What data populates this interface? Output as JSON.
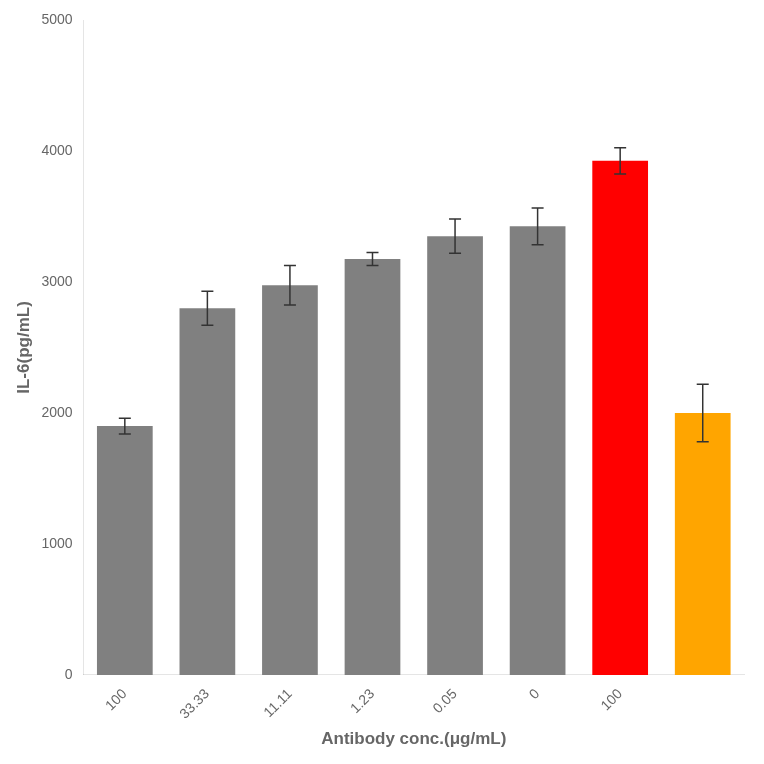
{
  "chart_data": {
    "type": "bar",
    "categories": [
      "100",
      "33.33",
      "11.11",
      "1.23",
      "0.05",
      "0",
      "100",
      null
    ],
    "values": [
      1900,
      2800,
      2975,
      3175,
      3350,
      3425,
      3925,
      2000
    ],
    "errors": [
      60,
      130,
      150,
      50,
      130,
      140,
      100,
      220
    ],
    "colors": [
      "#808080",
      "#808080",
      "#808080",
      "#808080",
      "#808080",
      "#808080",
      "#ff0000",
      "#ffa500"
    ],
    "xlabel": "Antibody conc.(μg/mL)",
    "ylabel": "IL-6(pg/mL)",
    "ylim": [
      0,
      5000
    ],
    "yticks": [
      0,
      1000,
      2000,
      3000,
      4000,
      5000
    ],
    "grid": false
  }
}
